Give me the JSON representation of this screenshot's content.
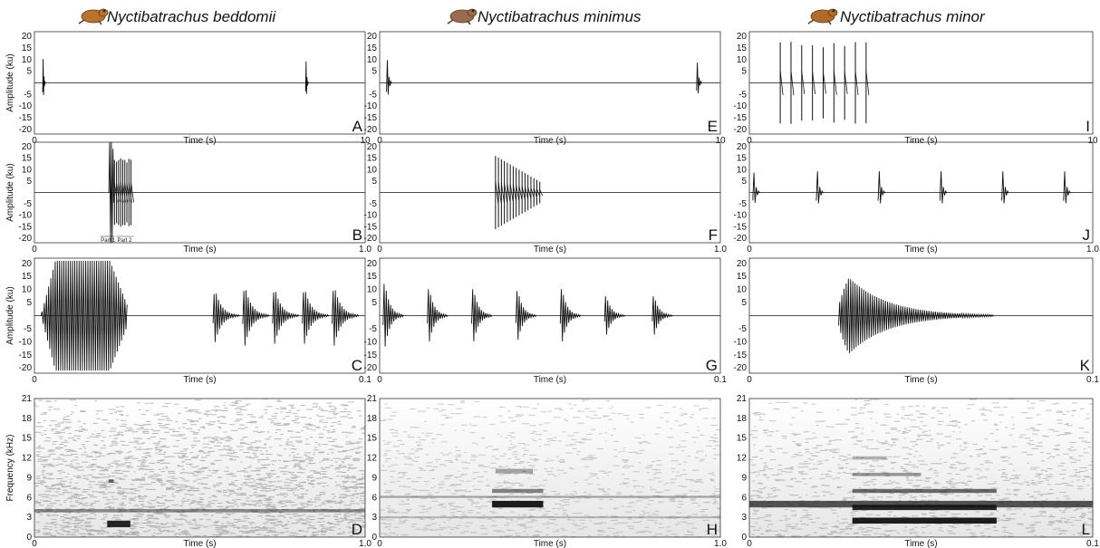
{
  "figure": {
    "species": [
      "Nyctibatrachus beddomii",
      "Nyctibatrachus minimus",
      "Nyctibatrachus minor"
    ],
    "frog_icon_colors": [
      "#b8742c",
      "#9a6b4f",
      "#b06a2a"
    ]
  },
  "chart_data": [
    {
      "type": "line",
      "panel": "A",
      "row": 0,
      "col": 0,
      "ylabel": "Amplitude (ku)",
      "xlabel": "Time (s)",
      "xlim": [
        0,
        10
      ],
      "x_ticks": [
        "0",
        "10"
      ],
      "y_ticks": [
        "20",
        "15",
        "10",
        "5",
        "-5",
        "-10",
        "-15",
        "-20"
      ],
      "ylim": [
        -22,
        22
      ],
      "bursts": [
        {
          "kind": "pulse",
          "t0": 0.25,
          "dur": 0.05,
          "amp": 20
        },
        {
          "kind": "pulse",
          "t0": 8.2,
          "dur": 0.05,
          "amp": 18
        }
      ]
    },
    {
      "type": "line",
      "panel": "B",
      "row": 1,
      "col": 0,
      "ylabel": "Amplitude (ku)",
      "xlabel": "Time (s)",
      "xlim": [
        0,
        1.0
      ],
      "x_ticks": [
        "0",
        "1.0"
      ],
      "y_ticks": [
        "20",
        "15",
        "10",
        "5",
        "-5",
        "-10",
        "-15",
        "-20"
      ],
      "ylim": [
        -22,
        22
      ],
      "bursts": [
        {
          "kind": "block",
          "t0": 0.225,
          "dur": 0.015,
          "amp": 22
        },
        {
          "kind": "train",
          "t0": 0.242,
          "dur": 0.05,
          "count": 9,
          "amp": 15
        }
      ],
      "annotations": [
        "Part 1",
        "Part 2"
      ]
    },
    {
      "type": "line",
      "panel": "C",
      "row": 2,
      "col": 0,
      "ylabel": "Amplitude (ku)",
      "xlabel": "Time (s)",
      "xlim": [
        0,
        0.1
      ],
      "x_ticks": [
        "0",
        "0.1"
      ],
      "y_ticks": [
        "20",
        "15",
        "10",
        "5",
        "-5",
        "-10",
        "-15",
        "-20"
      ],
      "ylim": [
        -22,
        22
      ],
      "bursts": [
        {
          "kind": "block",
          "t0": 0.002,
          "dur": 0.026,
          "amp": 21
        },
        {
          "kind": "pulse",
          "t0": 0.054,
          "dur": 0.008,
          "amp": 14
        },
        {
          "kind": "pulse",
          "t0": 0.063,
          "dur": 0.008,
          "amp": 16
        },
        {
          "kind": "pulse",
          "t0": 0.072,
          "dur": 0.008,
          "amp": 15
        },
        {
          "kind": "pulse",
          "t0": 0.081,
          "dur": 0.008,
          "amp": 15
        },
        {
          "kind": "pulse",
          "t0": 0.09,
          "dur": 0.008,
          "amp": 16
        }
      ]
    },
    {
      "type": "heatmap",
      "panel": "D",
      "row": 3,
      "col": 0,
      "ylabel": "Frequency (kHz)",
      "xlabel": "Time (s)",
      "xlim": [
        0,
        1.0
      ],
      "x_ticks": [
        "0",
        "1.0"
      ],
      "y_ticks": [
        "21",
        "18",
        "15",
        "12",
        "9",
        "6",
        "3",
        "0"
      ],
      "ylim": [
        0,
        21
      ],
      "shade": "#7a7a7a",
      "density": 0.55,
      "bands": [
        {
          "f": 4.0,
          "t0": 0.0,
          "t1": 1.0,
          "w": 0.5,
          "o": 0.45
        },
        {
          "f": 2.0,
          "t0": 0.22,
          "t1": 0.29,
          "w": 1.0,
          "o": 0.9
        },
        {
          "f": 8.5,
          "t0": 0.225,
          "t1": 0.24,
          "w": 0.5,
          "o": 0.6
        }
      ]
    },
    {
      "type": "line",
      "panel": "E",
      "row": 0,
      "col": 1,
      "ylabel": "",
      "xlabel": "Time (s)",
      "xlim": [
        0,
        10
      ],
      "x_ticks": [
        "0",
        "10"
      ],
      "y_ticks": [
        "20",
        "15",
        "10",
        "5",
        "-5",
        "-10",
        "-15",
        "-20"
      ],
      "ylim": [
        -22,
        22
      ],
      "bursts": [
        {
          "kind": "pulse",
          "t0": 0.2,
          "dur": 0.15,
          "amp": 19
        },
        {
          "kind": "pulse",
          "t0": 9.3,
          "dur": 0.15,
          "amp": 17
        }
      ]
    },
    {
      "type": "line",
      "panel": "F",
      "row": 1,
      "col": 1,
      "ylabel": "",
      "xlabel": "Time (s)",
      "xlim": [
        0,
        1.0
      ],
      "x_ticks": [
        "0",
        "1.0"
      ],
      "y_ticks": [
        "20",
        "15",
        "10",
        "5",
        "-5",
        "-10",
        "-15",
        "-20"
      ],
      "ylim": [
        -22,
        22
      ],
      "bursts": [
        {
          "kind": "train",
          "t0": 0.34,
          "dur": 0.13,
          "count": 16,
          "amp": 16,
          "decay": true
        }
      ]
    },
    {
      "type": "line",
      "panel": "G",
      "row": 2,
      "col": 1,
      "ylabel": "",
      "xlabel": "Time (s)",
      "xlim": [
        0,
        0.1
      ],
      "x_ticks": [
        "0",
        "0.1"
      ],
      "y_ticks": [
        "20",
        "15",
        "10",
        "5",
        "-5",
        "-10",
        "-15",
        "-20"
      ],
      "ylim": [
        -22,
        22
      ],
      "bursts": [
        {
          "kind": "pulse",
          "t0": 0.001,
          "dur": 0.006,
          "amp": 18
        },
        {
          "kind": "pulse",
          "t0": 0.014,
          "dur": 0.006,
          "amp": 15
        },
        {
          "kind": "pulse",
          "t0": 0.027,
          "dur": 0.006,
          "amp": 15
        },
        {
          "kind": "pulse",
          "t0": 0.04,
          "dur": 0.006,
          "amp": 14
        },
        {
          "kind": "pulse",
          "t0": 0.053,
          "dur": 0.006,
          "amp": 15
        },
        {
          "kind": "pulse",
          "t0": 0.066,
          "dur": 0.006,
          "amp": 11
        },
        {
          "kind": "pulse",
          "t0": 0.08,
          "dur": 0.006,
          "amp": 11
        }
      ]
    },
    {
      "type": "heatmap",
      "panel": "H",
      "row": 3,
      "col": 1,
      "ylabel": "",
      "xlabel": "Time (s)",
      "xlim": [
        0,
        1.0
      ],
      "x_ticks": [
        "0",
        "1.0"
      ],
      "y_ticks": [
        "21",
        "18",
        "15",
        "12",
        "9",
        "6",
        "3",
        "0"
      ],
      "ylim": [
        0,
        21
      ],
      "shade": "#9a9a9a",
      "density": 0.25,
      "bands": [
        {
          "f": 5.0,
          "t0": 0.33,
          "t1": 0.48,
          "w": 1.0,
          "o": 0.95
        },
        {
          "f": 7.0,
          "t0": 0.33,
          "t1": 0.48,
          "w": 0.6,
          "o": 0.5
        },
        {
          "f": 10.0,
          "t0": 0.34,
          "t1": 0.45,
          "w": 0.7,
          "o": 0.35
        },
        {
          "f": 6.1,
          "t0": 0.0,
          "t1": 1.0,
          "w": 0.3,
          "o": 0.35
        },
        {
          "f": 3.0,
          "t0": 0.0,
          "t1": 1.0,
          "w": 0.2,
          "o": 0.25
        }
      ]
    },
    {
      "type": "line",
      "panel": "I",
      "row": 0,
      "col": 2,
      "ylabel": "",
      "xlabel": "Time (s)",
      "xlim": [
        0,
        10
      ],
      "x_ticks": [
        "0",
        "10"
      ],
      "y_ticks": [
        "20",
        "15",
        "10",
        "5",
        "-5",
        "-10",
        "-15",
        "-20"
      ],
      "ylim": [
        -22,
        22
      ],
      "bursts": [
        {
          "kind": "train",
          "t0": 0.9,
          "dur": 2.5,
          "count": 9,
          "amp": 18
        }
      ]
    },
    {
      "type": "line",
      "panel": "J",
      "row": 1,
      "col": 2,
      "ylabel": "",
      "xlabel": "Time (s)",
      "xlim": [
        0,
        1.0
      ],
      "x_ticks": [
        "0",
        "1.0"
      ],
      "y_ticks": [
        "20",
        "15",
        "10",
        "5",
        "-5",
        "-10",
        "-15",
        "-20"
      ],
      "ylim": [
        -22,
        22
      ],
      "bursts": [
        {
          "kind": "pulse",
          "t0": 0.01,
          "dur": 0.02,
          "amp": 17
        },
        {
          "kind": "pulse",
          "t0": 0.195,
          "dur": 0.02,
          "amp": 18
        },
        {
          "kind": "pulse",
          "t0": 0.375,
          "dur": 0.02,
          "amp": 18
        },
        {
          "kind": "pulse",
          "t0": 0.555,
          "dur": 0.02,
          "amp": 18
        },
        {
          "kind": "pulse",
          "t0": 0.735,
          "dur": 0.02,
          "amp": 18
        },
        {
          "kind": "pulse",
          "t0": 0.915,
          "dur": 0.02,
          "amp": 18
        }
      ]
    },
    {
      "type": "line",
      "panel": "K",
      "row": 2,
      "col": 2,
      "ylabel": "",
      "xlabel": "Time (s)",
      "xlim": [
        0,
        0.1
      ],
      "x_ticks": [
        "0",
        "0.1"
      ],
      "y_ticks": [
        "20",
        "15",
        "10",
        "5",
        "-5",
        "-10",
        "-15",
        "-20"
      ],
      "ylim": [
        -22,
        22
      ],
      "bursts": [
        {
          "kind": "pulse",
          "t0": 0.026,
          "dur": 0.045,
          "amp": 19
        }
      ]
    },
    {
      "type": "heatmap",
      "panel": "L",
      "row": 3,
      "col": 2,
      "ylabel": "",
      "xlabel": "Time (s)",
      "xlim": [
        0,
        0.1
      ],
      "x_ticks": [
        "0",
        "0.1"
      ],
      "y_ticks": [
        "21",
        "18",
        "15",
        "12",
        "9",
        "6",
        "3",
        "0"
      ],
      "ylim": [
        0,
        21
      ],
      "shade": "#8a8a8a",
      "density": 0.3,
      "bands": [
        {
          "f": 5.0,
          "t0": 0.0,
          "t1": 1.0,
          "w": 1.0,
          "o": 0.7
        },
        {
          "f": 2.5,
          "t0": 0.3,
          "t1": 0.72,
          "w": 0.9,
          "o": 0.95
        },
        {
          "f": 4.5,
          "t0": 0.3,
          "t1": 0.72,
          "w": 0.8,
          "o": 0.9
        },
        {
          "f": 7.0,
          "t0": 0.3,
          "t1": 0.72,
          "w": 0.6,
          "o": 0.6
        },
        {
          "f": 9.5,
          "t0": 0.3,
          "t1": 0.5,
          "w": 0.5,
          "o": 0.4
        },
        {
          "f": 12.0,
          "t0": 0.3,
          "t1": 0.4,
          "w": 0.5,
          "o": 0.3
        }
      ]
    }
  ]
}
